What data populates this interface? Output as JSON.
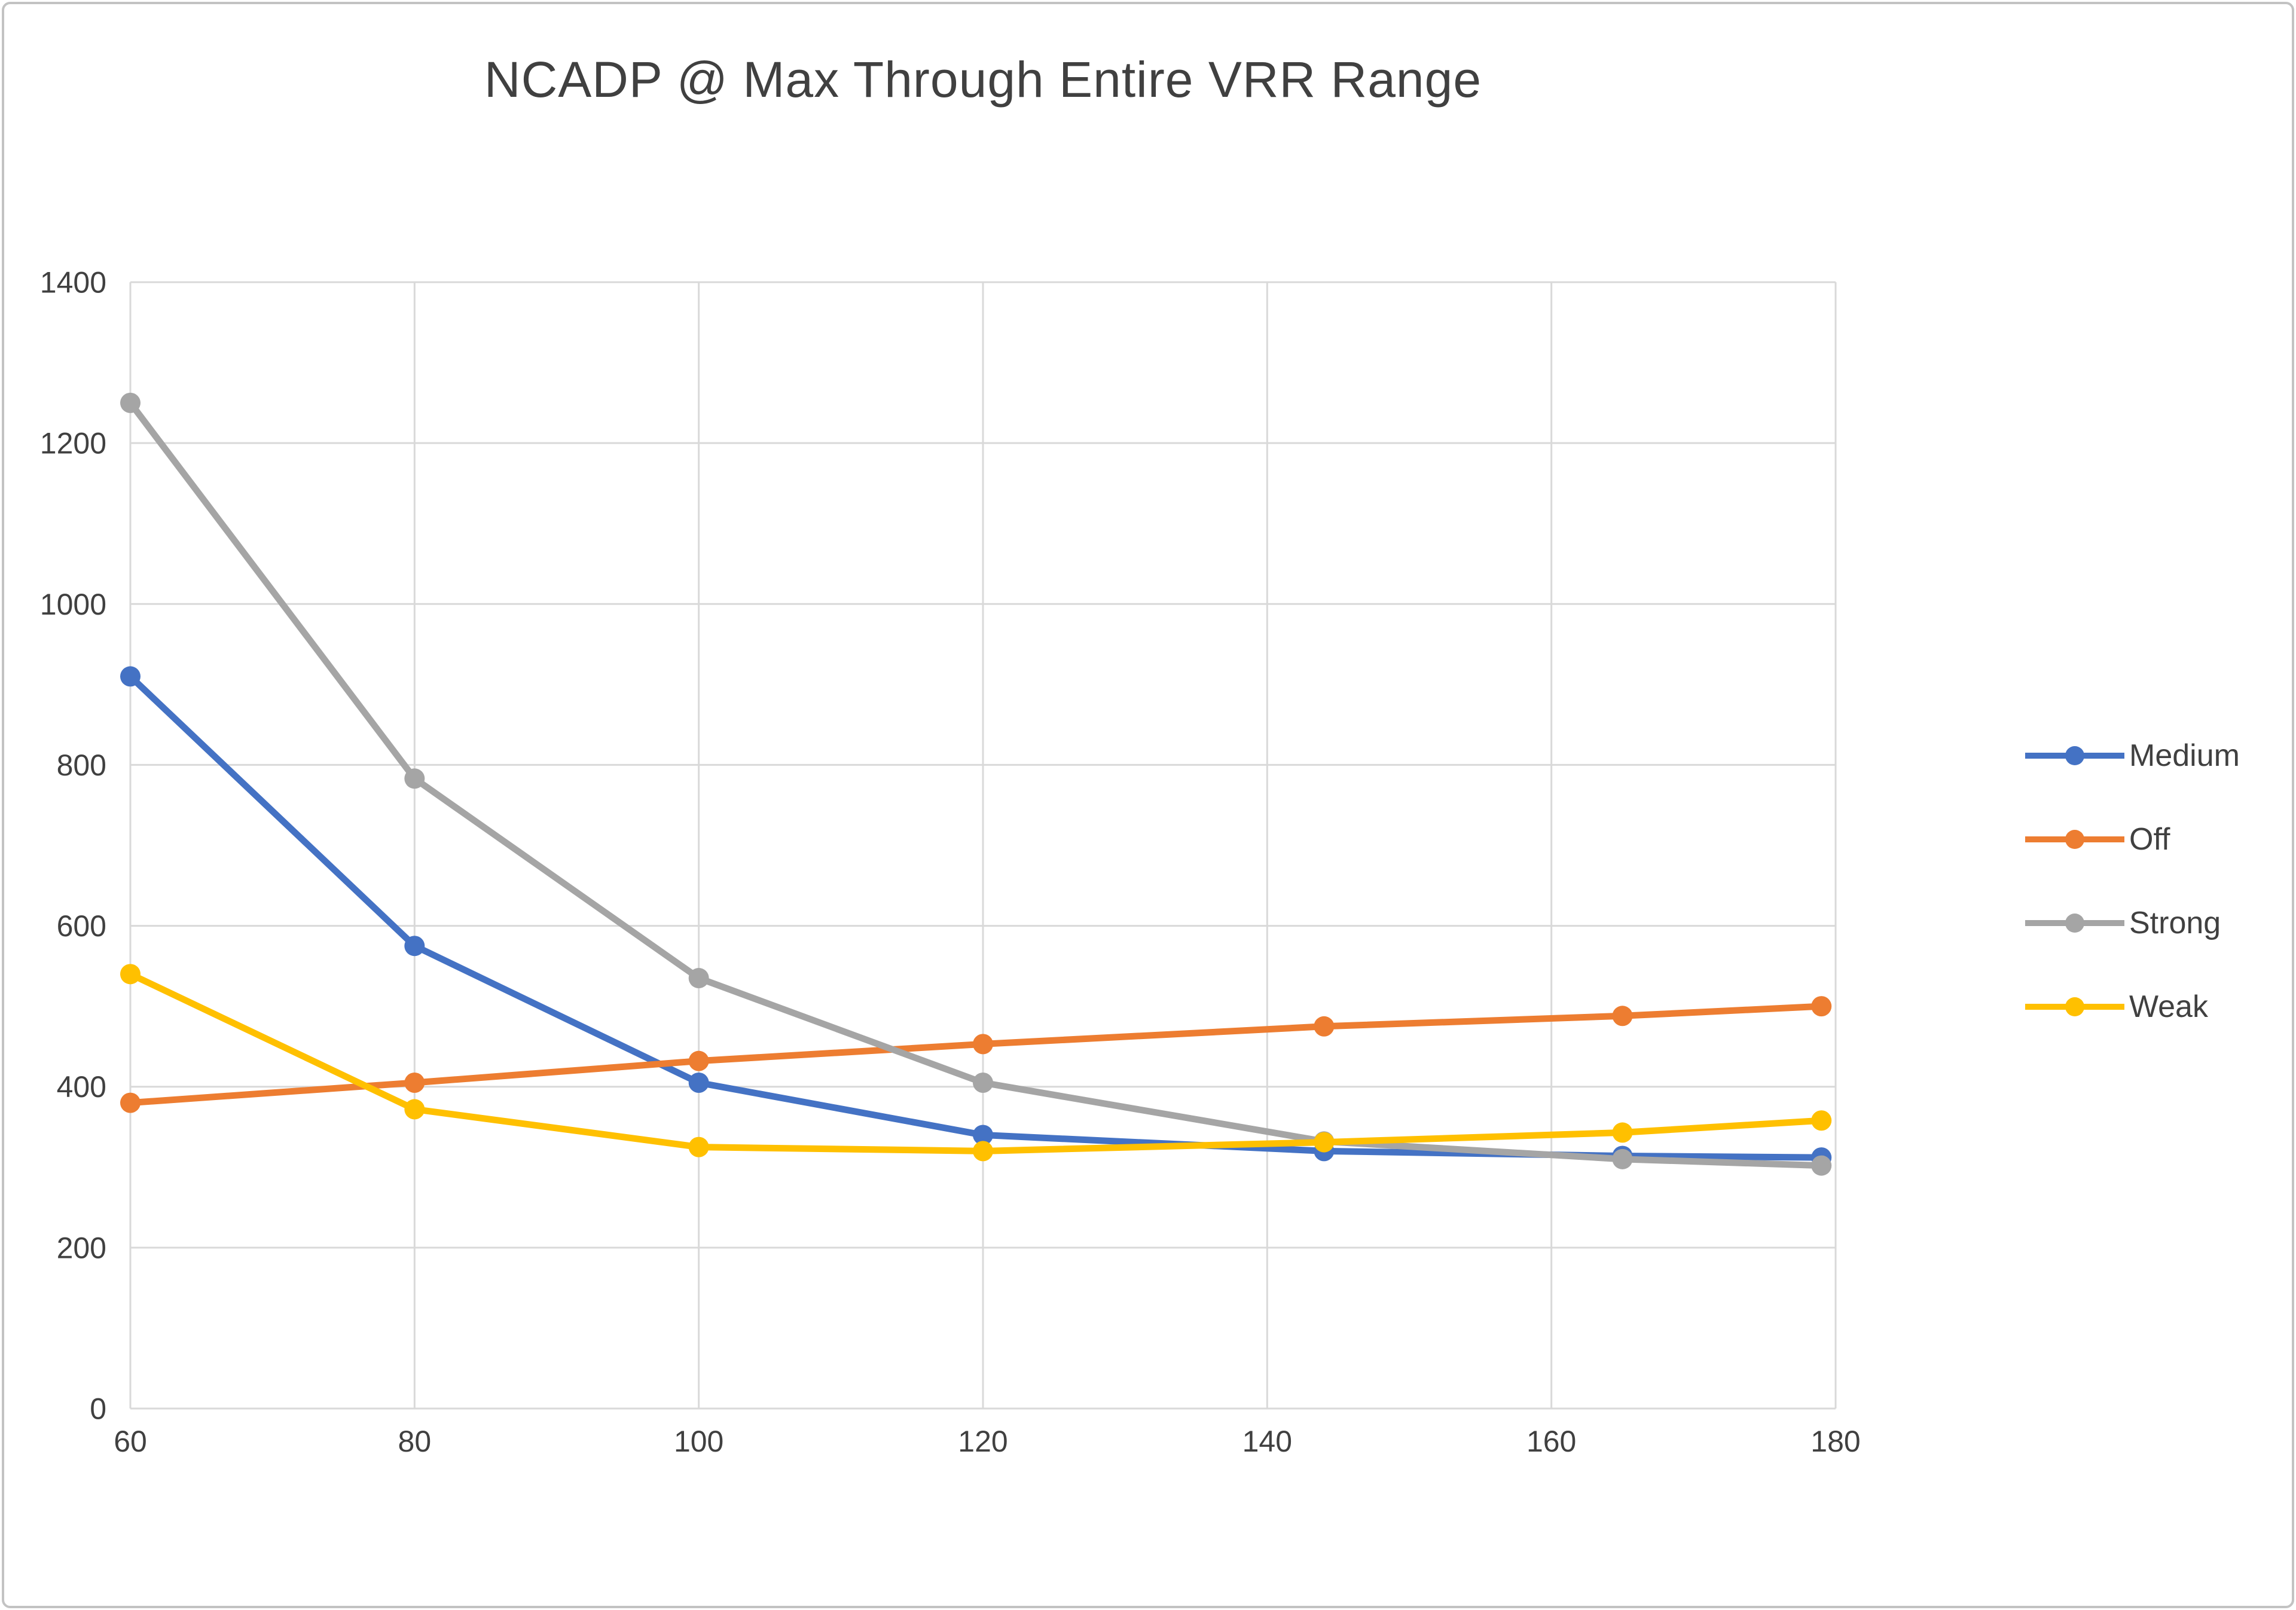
{
  "chart_data": {
    "type": "line",
    "title": "NCADP @ Max Through Entire VRR Range",
    "xlabel": "",
    "ylabel": "",
    "x": [
      60,
      80,
      100,
      120,
      144,
      165,
      179
    ],
    "series": [
      {
        "name": "Medium",
        "color": "#4472C4",
        "values": [
          910,
          575,
          405,
          340,
          320,
          314,
          312
        ]
      },
      {
        "name": "Off",
        "color": "#ED7D31",
        "values": [
          380,
          405,
          432,
          453,
          475,
          488,
          500
        ]
      },
      {
        "name": "Strong",
        "color": "#A5A5A5",
        "values": [
          1250,
          783,
          535,
          405,
          332,
          310,
          302
        ]
      },
      {
        "name": "Weak",
        "color": "#FFC000",
        "values": [
          540,
          372,
          325,
          320,
          331,
          343,
          358
        ]
      }
    ],
    "x_ticks": [
      60,
      80,
      100,
      120,
      140,
      160,
      180
    ],
    "y_ticks": [
      0,
      200,
      400,
      600,
      800,
      1000,
      1200,
      1400
    ],
    "xlim": [
      60,
      180
    ],
    "ylim": [
      0,
      1400
    ],
    "grid": true,
    "grid_color": "#D9D9D9",
    "text_color": "#404040",
    "legend_position": "right"
  }
}
